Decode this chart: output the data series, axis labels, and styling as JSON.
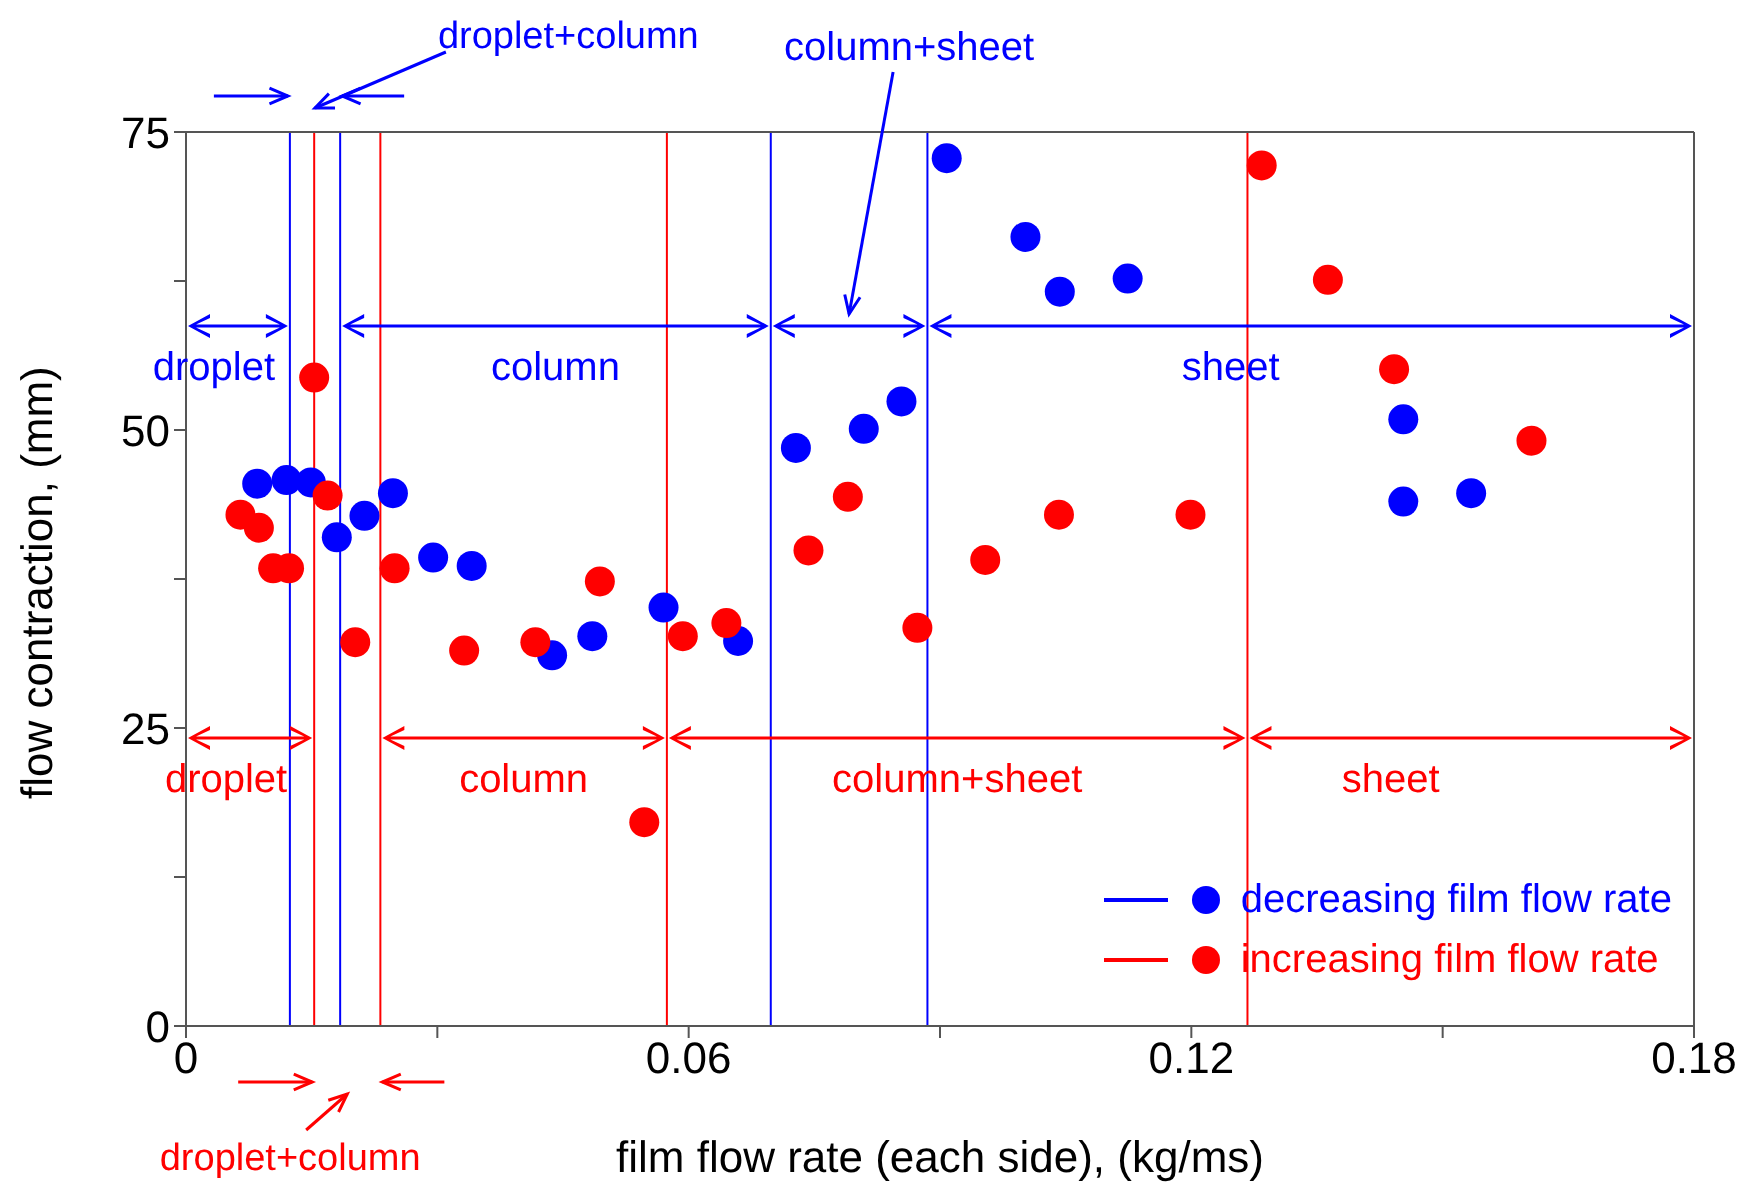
{
  "chart_data": {
    "type": "scatter",
    "xlabel": "film flow rate (each side), (kg/ms)",
    "ylabel": "flow contraction, (mm)",
    "xlim": [
      0,
      0.18
    ],
    "ylim": [
      0,
      75
    ],
    "xticks": [
      0,
      {
        "value": 0.03,
        "label": null
      },
      0.06,
      {
        "value": 0.09,
        "label": null
      },
      0.12,
      {
        "value": 0.15,
        "label": null
      },
      0.18
    ],
    "yticks": [
      0,
      {
        "value": 12.5,
        "label": null
      },
      25,
      {
        "value": 37.5,
        "label": null
      },
      50,
      {
        "value": 62.5,
        "label": null
      },
      75
    ],
    "marker": "circle",
    "legend": "bottom right",
    "grid": false,
    "series": [
      {
        "name": "decreasing film flow rate",
        "color": "#0000ff",
        "x": [
          0.0085,
          0.012,
          0.0149,
          0.018,
          0.0213,
          0.0247,
          0.0295,
          0.0341,
          0.0437,
          0.0485,
          0.057,
          0.0659,
          0.0728,
          0.0809,
          0.0854,
          0.0908,
          0.1002,
          0.1043,
          0.1124,
          0.1453,
          0.1453,
          0.1534
        ],
        "values": [
          45.5,
          45.8,
          45.6,
          41.0,
          42.8,
          44.7,
          39.3,
          38.6,
          31.1,
          32.7,
          35.1,
          32.3,
          48.5,
          50.1,
          52.4,
          72.8,
          66.2,
          61.6,
          62.7,
          50.9,
          44.0,
          44.7
        ]
      },
      {
        "name": "increasing film flow rate",
        "color": "#ff0000",
        "x": [
          0.0065,
          0.0087,
          0.0104,
          0.0123,
          0.0153,
          0.0169,
          0.0202,
          0.0249,
          0.0332,
          0.0417,
          0.0494,
          0.0547,
          0.0593,
          0.0645,
          0.0743,
          0.079,
          0.0873,
          0.0954,
          0.1042,
          0.1199,
          0.1284,
          0.1363,
          0.1442,
          0.1606
        ],
        "values": [
          42.9,
          41.8,
          38.4,
          38.4,
          54.4,
          44.5,
          32.2,
          38.4,
          31.5,
          32.2,
          37.3,
          17.1,
          32.7,
          33.8,
          39.9,
          44.4,
          33.4,
          39.1,
          42.9,
          42.9,
          72.2,
          62.6,
          55.1,
          49.1
        ]
      }
    ],
    "ref_lines": [
      {
        "axis": "x",
        "value": 0.0124,
        "color": "#0000ff"
      },
      {
        "axis": "x",
        "value": 0.0184,
        "color": "#0000ff"
      },
      {
        "axis": "x",
        "value": 0.0698,
        "color": "#0000ff"
      },
      {
        "axis": "x",
        "value": 0.0885,
        "color": "#0000ff"
      },
      {
        "axis": "x",
        "value": 0.0153,
        "color": "#ff0000"
      },
      {
        "axis": "x",
        "value": 0.0232,
        "color": "#ff0000"
      },
      {
        "axis": "x",
        "value": 0.0574,
        "color": "#ff0000"
      },
      {
        "axis": "x",
        "value": 0.1267,
        "color": "#ff0000"
      }
    ],
    "annotations": [
      "droplet",
      "droplet+column",
      "column",
      "column+sheet",
      "sheet",
      "droplet",
      "column",
      "column+sheet",
      "sheet",
      "droplet+column"
    ]
  }
}
